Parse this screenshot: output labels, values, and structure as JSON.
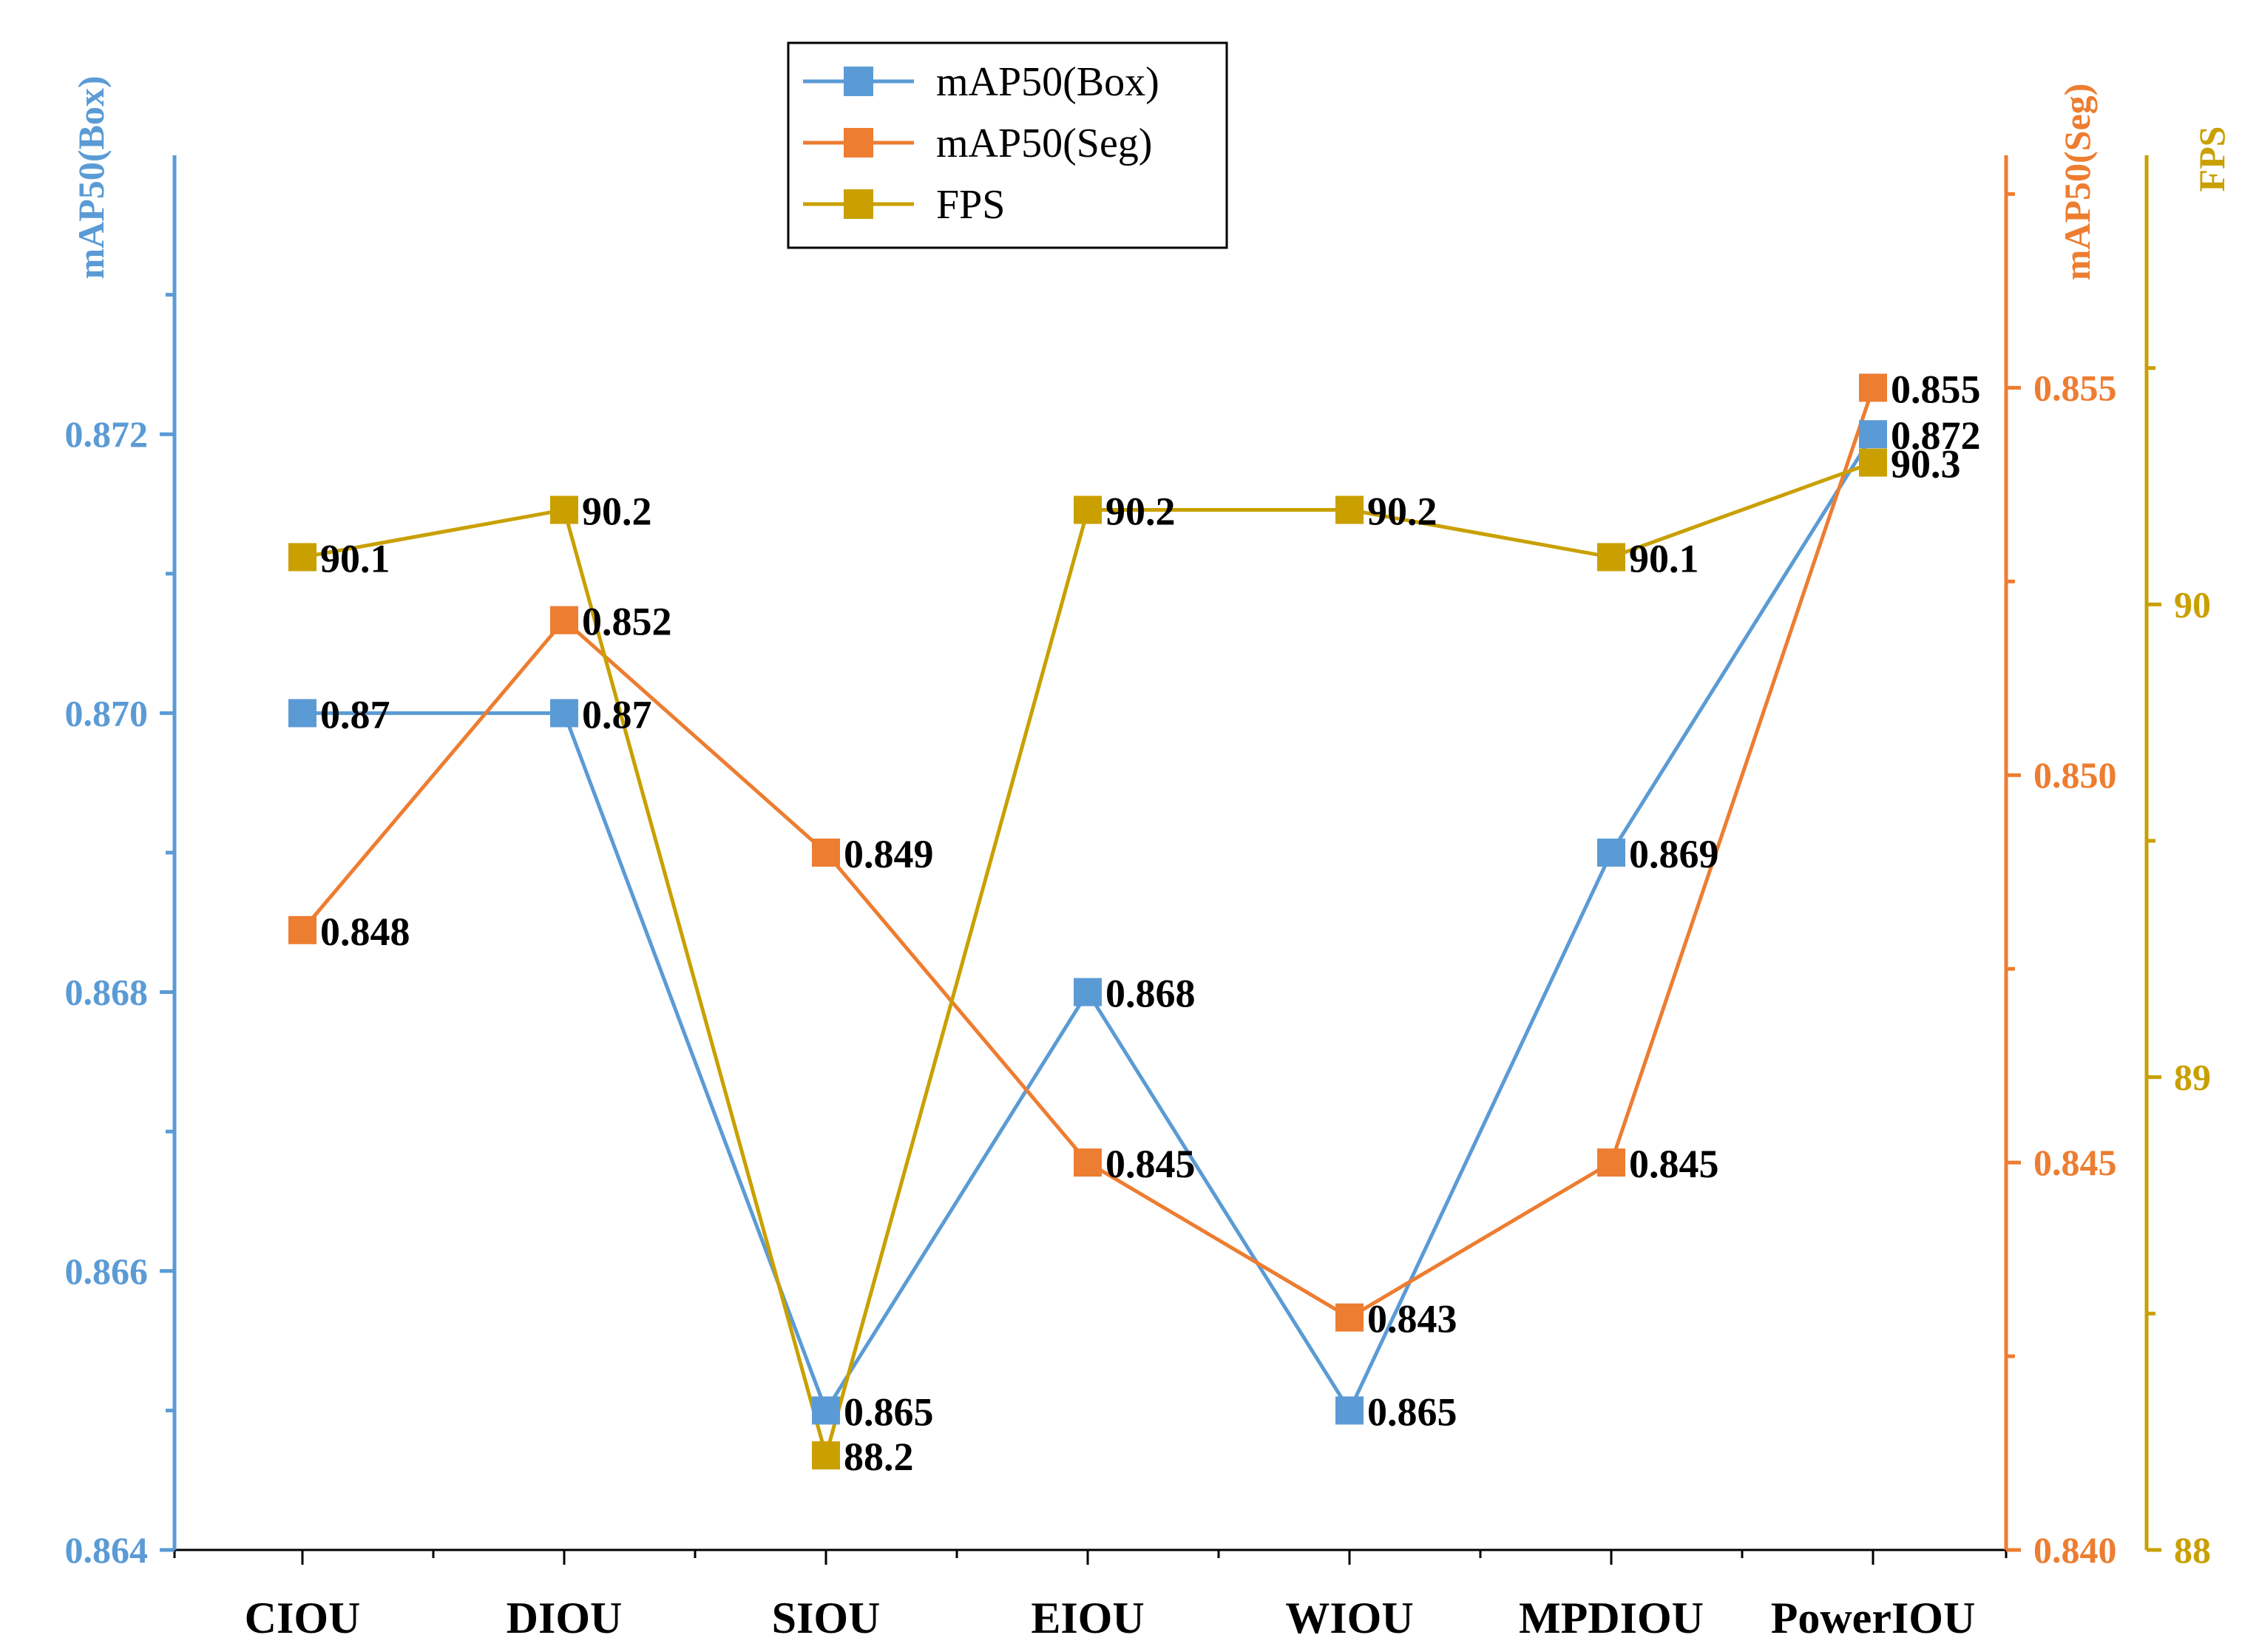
{
  "chart_data": {
    "type": "line",
    "categories": [
      "CIOU",
      "DIOU",
      "SIOU",
      "EIOU",
      "WIOU",
      "MPDIOU",
      "PowerIOU"
    ],
    "series": [
      {
        "name": "mAP50(Box)",
        "axis": "left",
        "color": "#5b9bd5",
        "values": [
          0.87,
          0.87,
          0.865,
          0.868,
          0.865,
          0.869,
          0.872
        ],
        "labels": [
          "0.87",
          "0.87",
          "0.865",
          "0.868",
          "0.865",
          "0.869",
          "0.872"
        ]
      },
      {
        "name": "mAP50(Seg)",
        "axis": "right1",
        "color": "#ed7d31",
        "values": [
          0.848,
          0.852,
          0.849,
          0.845,
          0.843,
          0.845,
          0.855
        ],
        "labels": [
          "0.848",
          "0.852",
          "0.849",
          "0.845",
          "0.843",
          "0.845",
          "0.855"
        ]
      },
      {
        "name": "FPS",
        "axis": "right2",
        "color": "#c9a000",
        "values": [
          90.1,
          90.2,
          88.2,
          90.2,
          90.2,
          90.1,
          90.3
        ],
        "labels": [
          "90.1",
          "90.2",
          "88.2",
          "90.2",
          "90.2",
          "90.1",
          "90.3"
        ]
      }
    ],
    "axes": {
      "left": {
        "label": "mAP50(Box)",
        "color": "#5b9bd5",
        "range": [
          0.864,
          0.874
        ],
        "ticks": [
          0.864,
          0.866,
          0.868,
          0.87,
          0.872
        ],
        "tick_labels": [
          "0.864",
          "0.866",
          "0.868",
          "0.870",
          "0.872"
        ]
      },
      "right1": {
        "label": "mAP50(Seg)",
        "color": "#ed7d31",
        "range": [
          0.84,
          0.858
        ],
        "ticks": [
          0.84,
          0.845,
          0.85,
          0.855
        ],
        "tick_labels": [
          "0.840",
          "0.845",
          "0.850",
          "0.855"
        ]
      },
      "right2": {
        "label": "FPS",
        "color": "#c9a000",
        "range": [
          88,
          90.95
        ],
        "ticks": [
          88,
          89,
          90
        ],
        "tick_labels": [
          "88",
          "89",
          "90"
        ]
      }
    },
    "legend": {
      "position": "top-center",
      "entries": [
        "mAP50(Box)",
        "mAP50(Seg)",
        "FPS"
      ]
    },
    "grid": false
  }
}
